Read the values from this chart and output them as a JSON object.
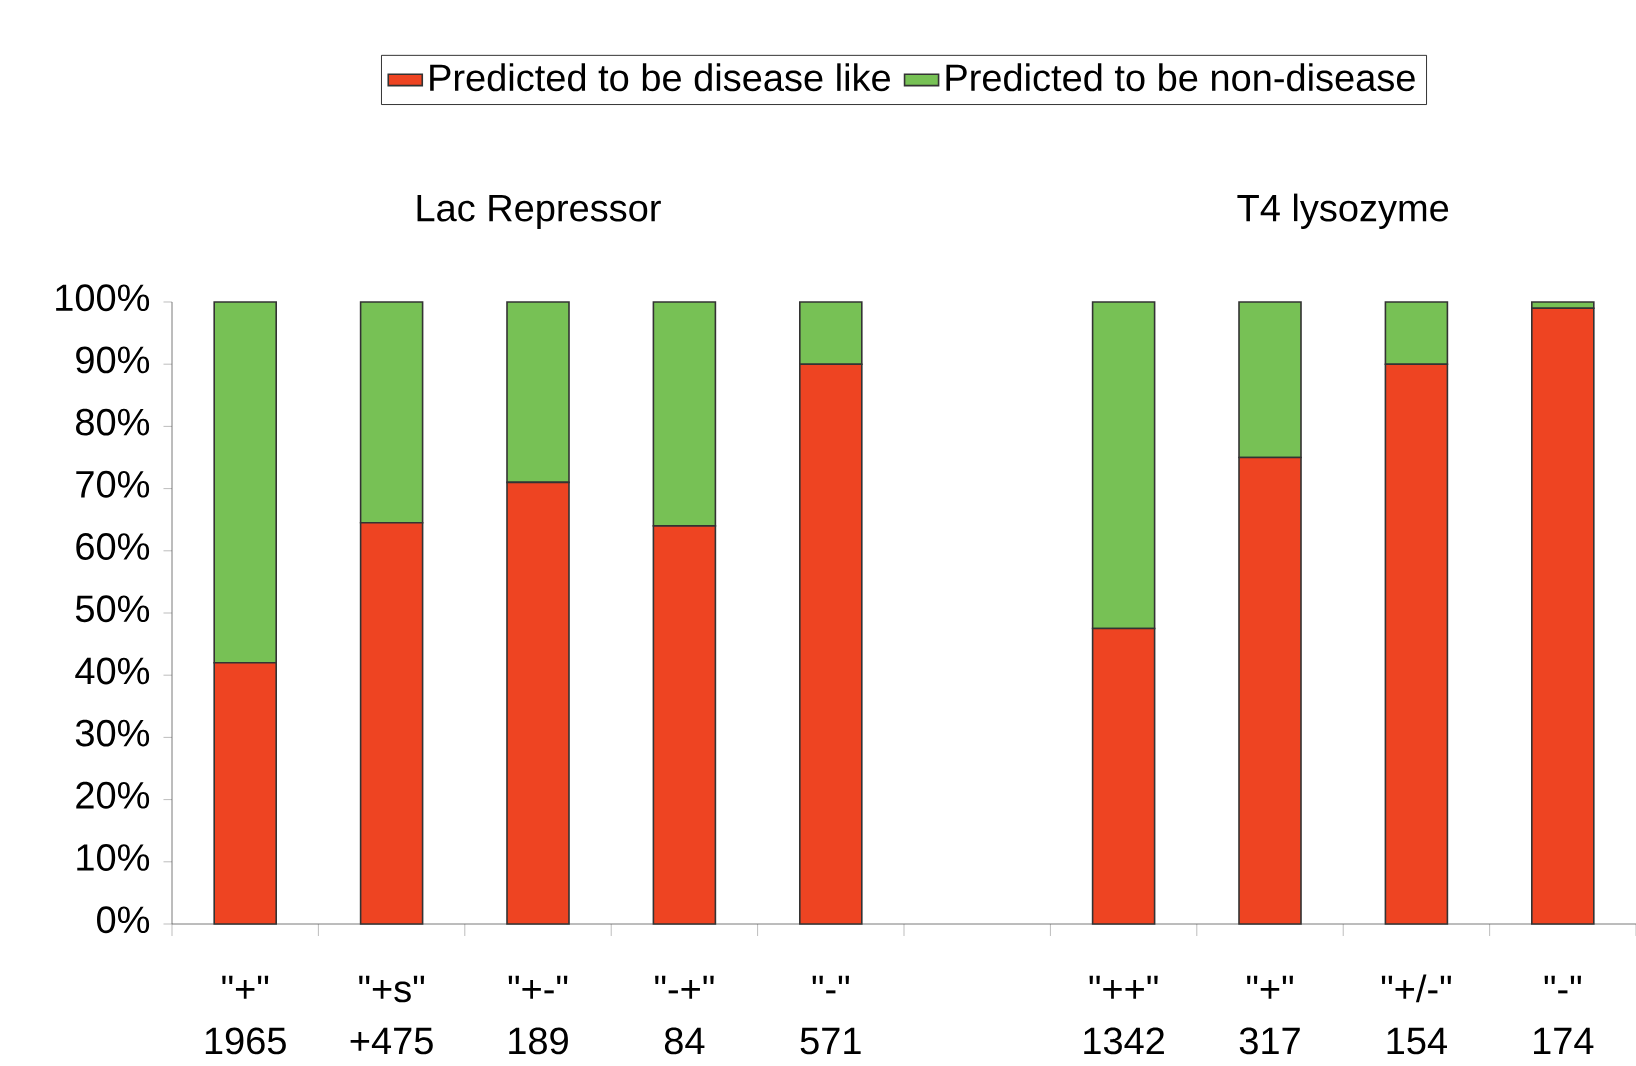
{
  "chart_data": {
    "type": "bar",
    "stacked": true,
    "categories": [
      "\"+\" 1965",
      "\"+s\" +475",
      "\"+-\" 189",
      "\"-+\" 84",
      "\"-\" 571",
      null,
      "\"++\" 1342",
      "\"+\" 317",
      "\"+/-\" 154",
      "\"-\" 174"
    ],
    "series": [
      {
        "name": "Predicted to be disease like",
        "color": "#ee4422",
        "values": [
          42,
          64.5,
          71,
          64,
          90,
          null,
          47.5,
          75,
          90,
          99
        ]
      },
      {
        "name": "Predicted to be non-disease",
        "color": "#77c155",
        "values": [
          58,
          35.5,
          29,
          36,
          10,
          null,
          52.5,
          25,
          10,
          1
        ]
      }
    ],
    "ylim": [
      0,
      100
    ],
    "yticks": [
      {
        "value": 0,
        "label": "0%"
      },
      {
        "value": 10,
        "label": "10%"
      },
      {
        "value": 20,
        "label": "20%"
      },
      {
        "value": 30,
        "label": "30%"
      },
      {
        "value": 40,
        "label": "40%"
      },
      {
        "value": 50,
        "label": "50%"
      },
      {
        "value": 60,
        "label": "60%"
      },
      {
        "value": 70,
        "label": "70%"
      },
      {
        "value": 80,
        "label": "80%"
      },
      {
        "value": 90,
        "label": "90%"
      },
      {
        "value": 100,
        "label": "100%"
      }
    ],
    "annotations": [
      "Lac Repressor",
      "T4 lysozyme"
    ],
    "legend": "top",
    "grid": false
  }
}
